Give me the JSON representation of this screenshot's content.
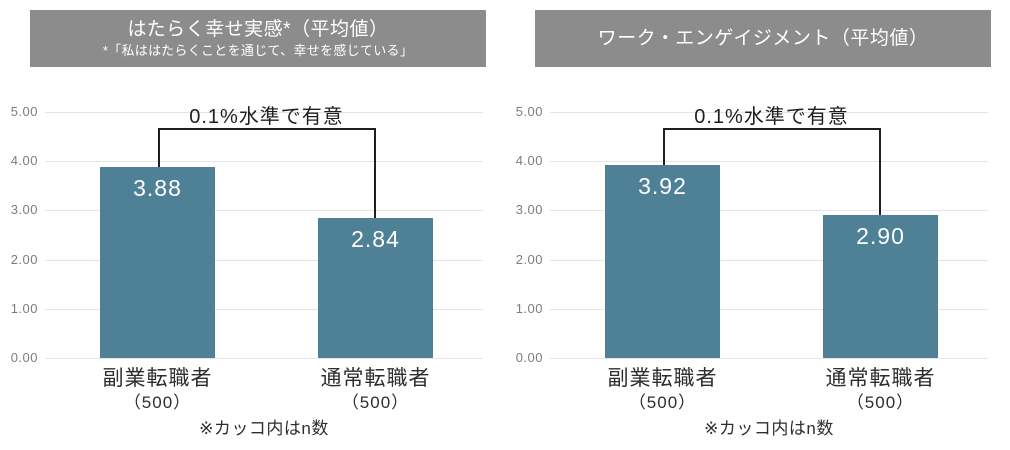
{
  "colors": {
    "bar": "#4E8196",
    "header_bg": "#8C8C8C",
    "header_text": "#FFFFFF",
    "grid": "#E5E5E5",
    "tick_label": "#7D7D7D",
    "bracket": "#1F1F1F",
    "value_label": "#FFFFFF",
    "category_label": "#2E2E2E",
    "significance_label": "#1F1F1F",
    "note_text": "#2E2E2E",
    "background": "#FFFFFF"
  },
  "chart_data": [
    {
      "type": "bar",
      "title": "はたらく幸せ実感*（平均値）",
      "subtitle": "*「私ははたらくことを通じて、幸せを感じている」",
      "categories": [
        "副業転職者",
        "通常転職者"
      ],
      "category_sublabels": [
        "（500）",
        "（500）"
      ],
      "values": [
        3.88,
        2.84
      ],
      "ylim": [
        0,
        5
      ],
      "yticks": [
        "5.00",
        "4.00",
        "3.00",
        "2.00",
        "1.00",
        "0.00"
      ],
      "grid": true,
      "legend": null,
      "significance_label": "0.1%水準で有意",
      "note": "※カッコ内はn数"
    },
    {
      "type": "bar",
      "title": "ワーク・エンゲイジメント（平均値）",
      "subtitle": "",
      "categories": [
        "副業転職者",
        "通常転職者"
      ],
      "category_sublabels": [
        "（500）",
        "（500）"
      ],
      "values": [
        3.92,
        2.9
      ],
      "ylim": [
        0,
        5
      ],
      "yticks": [
        "5.00",
        "4.00",
        "3.00",
        "2.00",
        "1.00",
        "0.00"
      ],
      "grid": true,
      "legend": null,
      "significance_label": "0.1%水準で有意",
      "note": "※カッコ内はn数"
    }
  ]
}
